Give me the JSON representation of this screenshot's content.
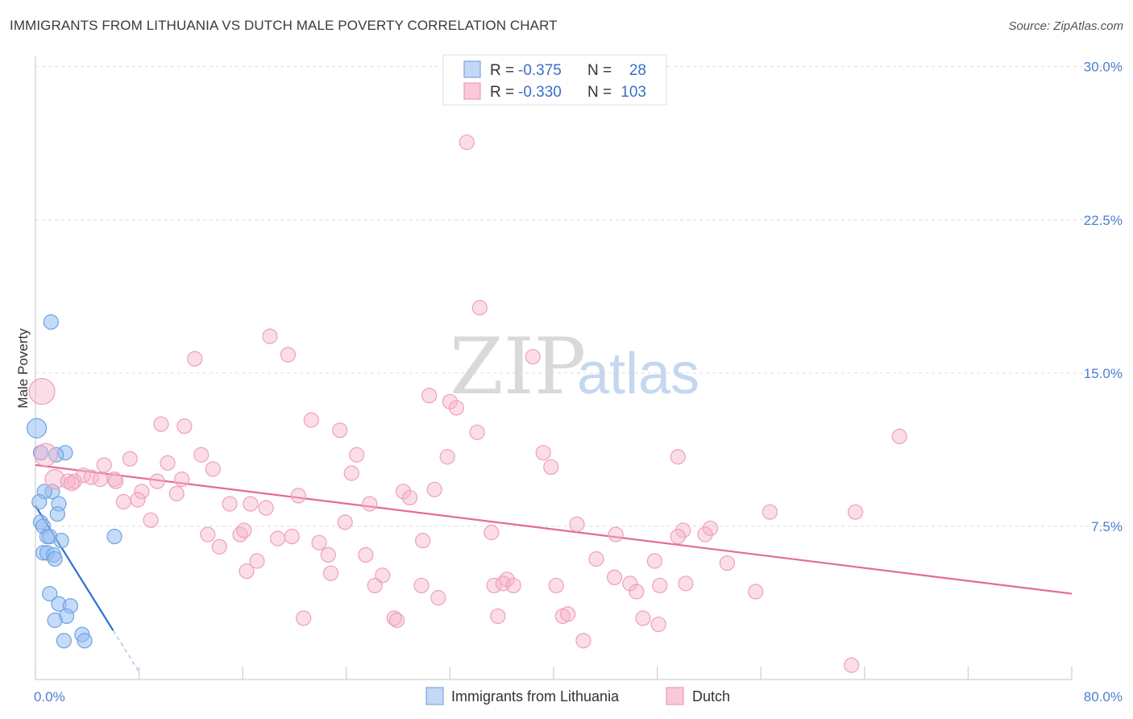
{
  "title": "IMMIGRANTS FROM LITHUANIA VS DUTCH MALE POVERTY CORRELATION CHART",
  "source": "Source: ZipAtlas.com",
  "watermark": {
    "zip": "ZIP",
    "atlas": "atlas"
  },
  "colors": {
    "blue": "#6fa3e6",
    "blue_line": "#2f6fcf",
    "pink": "#f29bb8",
    "pink_line": "#e46b94",
    "axis_text": "#4a7fd0"
  },
  "legend": {
    "rows": [
      {
        "r_label": "R =",
        "r_value": "-0.375",
        "n_label": "N =",
        "n_value": "28",
        "color": "blue"
      },
      {
        "r_label": "R =",
        "r_value": "-0.330",
        "n_label": "N =",
        "n_value": "103",
        "color": "pink"
      }
    ]
  },
  "chart_data": {
    "type": "scatter",
    "xlabel": "",
    "ylabel": "Male Poverty",
    "xlim": [
      0,
      80
    ],
    "ylim": [
      0,
      30.5
    ],
    "x_tick_labels": [
      "0.0%",
      "80.0%"
    ],
    "y_ticks": [
      7.5,
      15.0,
      22.5,
      30.0
    ],
    "y_tick_labels": [
      "7.5%",
      "15.0%",
      "22.5%",
      "30.0%"
    ],
    "grid": true,
    "legend_position": "bottom",
    "series": [
      {
        "name": "Immigrants from Lithuania",
        "color": "blue",
        "trend": {
          "x0": 0.0,
          "y0": 8.5,
          "x1": 6.0,
          "y1": 2.4,
          "dash_to_x": 8.0
        },
        "points": [
          [
            0.1,
            12.3,
            12
          ],
          [
            1.2,
            17.5,
            9
          ],
          [
            2.3,
            11.1,
            9
          ],
          [
            1.6,
            11.0,
            9
          ],
          [
            1.3,
            9.2,
            9
          ],
          [
            0.7,
            9.2,
            9
          ],
          [
            0.3,
            8.7,
            9
          ],
          [
            1.8,
            8.6,
            9
          ],
          [
            1.7,
            8.1,
            9
          ],
          [
            0.4,
            7.7,
            9
          ],
          [
            0.6,
            7.5,
            9
          ],
          [
            0.9,
            7.0,
            9
          ],
          [
            1.1,
            7.0,
            9
          ],
          [
            2.0,
            6.8,
            9
          ],
          [
            6.1,
            7.0,
            9
          ],
          [
            0.6,
            6.2,
            9
          ],
          [
            0.9,
            6.2,
            9
          ],
          [
            1.4,
            6.1,
            9
          ],
          [
            1.5,
            5.9,
            9
          ],
          [
            1.1,
            4.2,
            9
          ],
          [
            1.8,
            3.7,
            9
          ],
          [
            2.7,
            3.6,
            9
          ],
          [
            2.4,
            3.1,
            9
          ],
          [
            1.5,
            2.9,
            9
          ],
          [
            3.6,
            2.2,
            9
          ],
          [
            2.2,
            1.9,
            9
          ],
          [
            3.8,
            1.9,
            9
          ],
          [
            0.4,
            11.1,
            9
          ]
        ]
      },
      {
        "name": "Dutch",
        "color": "pink",
        "trend": {
          "x0": 0.0,
          "y0": 10.5,
          "x1": 80.0,
          "y1": 4.2
        },
        "points": [
          [
            0.5,
            14.1,
            16
          ],
          [
            0.8,
            11.0,
            14
          ],
          [
            1.5,
            9.8,
            12
          ],
          [
            33.3,
            26.3,
            9
          ],
          [
            34.3,
            18.2,
            9
          ],
          [
            18.1,
            16.8,
            9
          ],
          [
            19.5,
            15.9,
            9
          ],
          [
            12.3,
            15.7,
            9
          ],
          [
            38.4,
            15.8,
            9
          ],
          [
            30.4,
            13.9,
            9
          ],
          [
            32.0,
            13.6,
            9
          ],
          [
            32.5,
            13.3,
            9
          ],
          [
            21.3,
            12.7,
            9
          ],
          [
            9.7,
            12.5,
            9
          ],
          [
            11.5,
            12.4,
            9
          ],
          [
            23.5,
            12.2,
            9
          ],
          [
            34.1,
            12.1,
            9
          ],
          [
            66.7,
            11.9,
            9
          ],
          [
            39.2,
            11.1,
            9
          ],
          [
            12.8,
            11.0,
            9
          ],
          [
            24.8,
            11.0,
            9
          ],
          [
            31.8,
            10.9,
            9
          ],
          [
            49.6,
            10.9,
            9
          ],
          [
            7.3,
            10.8,
            9
          ],
          [
            10.2,
            10.6,
            9
          ],
          [
            5.3,
            10.5,
            9
          ],
          [
            39.8,
            10.4,
            9
          ],
          [
            13.7,
            10.3,
            9
          ],
          [
            24.4,
            10.1,
            9
          ],
          [
            3.7,
            10.0,
            9
          ],
          [
            4.3,
            9.9,
            9
          ],
          [
            6.1,
            9.8,
            9
          ],
          [
            5.0,
            9.8,
            9
          ],
          [
            3.0,
            9.7,
            9
          ],
          [
            2.5,
            9.7,
            9
          ],
          [
            6.2,
            9.7,
            9
          ],
          [
            11.3,
            9.8,
            9
          ],
          [
            9.4,
            9.7,
            9
          ],
          [
            2.8,
            9.6,
            9
          ],
          [
            8.2,
            9.2,
            9
          ],
          [
            10.9,
            9.1,
            9
          ],
          [
            30.8,
            9.3,
            9
          ],
          [
            28.4,
            9.2,
            9
          ],
          [
            28.9,
            8.9,
            9
          ],
          [
            20.3,
            9.0,
            9
          ],
          [
            6.8,
            8.7,
            9
          ],
          [
            7.9,
            8.8,
            9
          ],
          [
            15.0,
            8.6,
            9
          ],
          [
            16.6,
            8.6,
            9
          ],
          [
            17.8,
            8.4,
            9
          ],
          [
            25.8,
            8.6,
            9
          ],
          [
            56.7,
            8.2,
            9
          ],
          [
            63.3,
            8.2,
            9
          ],
          [
            8.9,
            7.8,
            9
          ],
          [
            23.9,
            7.7,
            9
          ],
          [
            41.8,
            7.6,
            9
          ],
          [
            50.0,
            7.3,
            9
          ],
          [
            52.1,
            7.4,
            9
          ],
          [
            35.2,
            7.2,
            9
          ],
          [
            44.8,
            7.1,
            9
          ],
          [
            13.3,
            7.1,
            9
          ],
          [
            15.8,
            7.1,
            9
          ],
          [
            16.1,
            7.3,
            9
          ],
          [
            18.7,
            6.9,
            9
          ],
          [
            19.8,
            7.0,
            9
          ],
          [
            29.9,
            6.8,
            9
          ],
          [
            21.9,
            6.7,
            9
          ],
          [
            49.6,
            7.0,
            9
          ],
          [
            51.7,
            7.1,
            9
          ],
          [
            14.2,
            6.5,
            9
          ],
          [
            22.6,
            6.1,
            9
          ],
          [
            25.5,
            6.1,
            9
          ],
          [
            43.3,
            5.9,
            9
          ],
          [
            17.1,
            5.8,
            9
          ],
          [
            47.8,
            5.8,
            9
          ],
          [
            53.4,
            5.7,
            9
          ],
          [
            16.3,
            5.3,
            9
          ],
          [
            22.8,
            5.2,
            9
          ],
          [
            26.8,
            5.1,
            9
          ],
          [
            36.4,
            4.9,
            9
          ],
          [
            44.7,
            5.0,
            9
          ],
          [
            26.2,
            4.6,
            9
          ],
          [
            35.4,
            4.6,
            9
          ],
          [
            36.1,
            4.7,
            9
          ],
          [
            36.9,
            4.6,
            9
          ],
          [
            45.9,
            4.7,
            9
          ],
          [
            29.8,
            4.6,
            9
          ],
          [
            40.2,
            4.6,
            9
          ],
          [
            48.2,
            4.6,
            9
          ],
          [
            50.2,
            4.7,
            9
          ],
          [
            46.4,
            4.3,
            9
          ],
          [
            55.6,
            4.3,
            9
          ],
          [
            31.1,
            4.0,
            9
          ],
          [
            20.7,
            3.0,
            9
          ],
          [
            27.7,
            3.0,
            9
          ],
          [
            27.9,
            2.9,
            9
          ],
          [
            35.7,
            3.1,
            9
          ],
          [
            40.7,
            3.1,
            9
          ],
          [
            41.1,
            3.2,
            9
          ],
          [
            46.9,
            3.0,
            9
          ],
          [
            48.1,
            2.7,
            9
          ],
          [
            42.3,
            1.9,
            9
          ],
          [
            63.0,
            0.7,
            9
          ]
        ]
      }
    ]
  }
}
